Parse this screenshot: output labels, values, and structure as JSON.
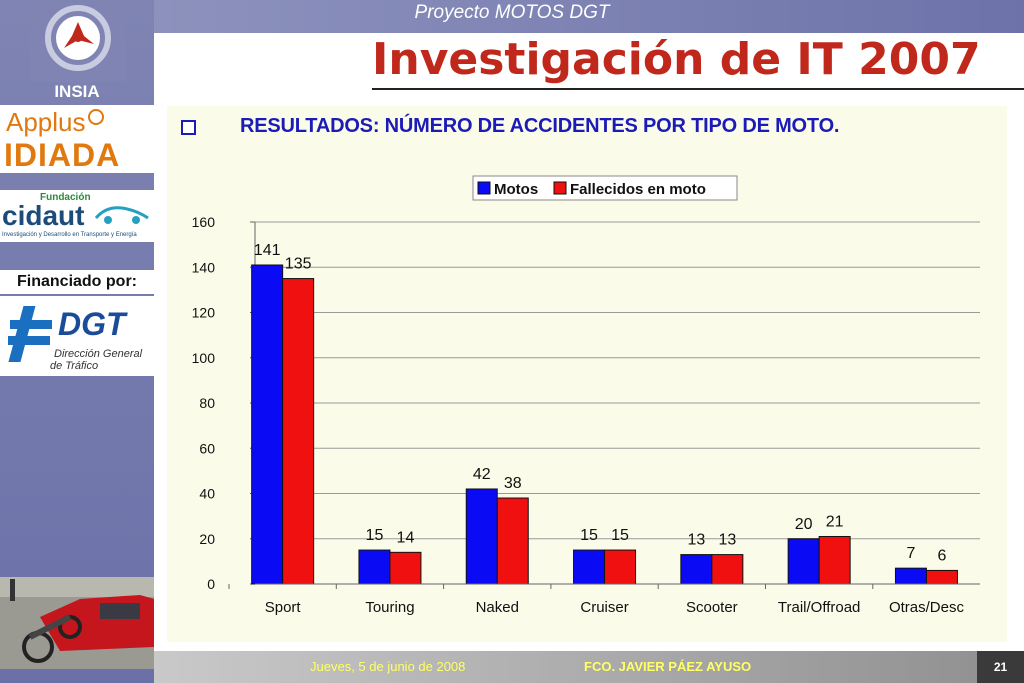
{
  "header": {
    "project": "Proyecto MOTOS DGT",
    "title": "Investigación de IT 2007"
  },
  "sidebar": {
    "insia_label": "INSIA",
    "applus_label": "Applus",
    "idiada_label": "IDIADA",
    "cidaut_foundation": "Fundación",
    "cidaut_label": "cidaut",
    "cidaut_tagline": "Investigación y Desarrollo en Transporte y Energía",
    "funded_label": "Financiado por:",
    "dgt_label": "DGT",
    "dgt_line1": "Dirección General",
    "dgt_line2": "de Tráfico"
  },
  "subtitle": "RESULTADOS: NÚMERO DE ACCIDENTES POR TIPO DE MOTO.",
  "footer": {
    "date": "Jueves, 5 de junio de 2008",
    "author": "FCO. JAVIER PÁEZ AYUSO",
    "page": "21"
  },
  "chart_data": {
    "type": "bar",
    "categories": [
      "Sport",
      "Touring",
      "Naked",
      "Cruiser",
      "Scooter",
      "Trail/Offroad",
      "Otras/Desc"
    ],
    "series": [
      {
        "name": "Motos",
        "values": [
          141,
          15,
          42,
          15,
          13,
          20,
          7
        ],
        "color": "#0a0af5"
      },
      {
        "name": "Fallecidos en moto",
        "values": [
          135,
          14,
          38,
          15,
          13,
          21,
          6
        ],
        "color": "#f01010"
      }
    ],
    "yticks": [
      0,
      20,
      40,
      60,
      80,
      100,
      120,
      140,
      160
    ],
    "ylim": [
      0,
      160
    ],
    "grid": true,
    "legend": "top-center"
  }
}
